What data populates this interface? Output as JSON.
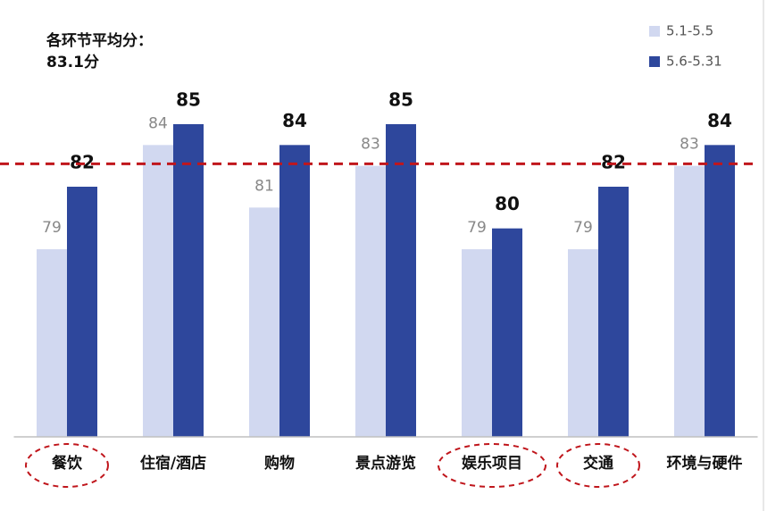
{
  "chart_data": {
    "type": "bar",
    "annotation": "各环节平均分：",
    "reference_line": {
      "value": 83.1,
      "label": "83.1分",
      "color": "#c0161c"
    },
    "categories": [
      "餐饮",
      "住宿/酒店",
      "购物",
      "景点游览",
      "娱乐项目",
      "交通",
      "环境与硬件"
    ],
    "series": [
      {
        "name": "5.1-5.5",
        "color": "#d1d8f0",
        "values": [
          79,
          84,
          81,
          83,
          79,
          79,
          83
        ]
      },
      {
        "name": "5.6-5.31",
        "color": "#2e479c",
        "values": [
          82,
          85,
          84,
          85,
          80,
          82,
          84
        ]
      }
    ],
    "highlighted_categories": [
      0,
      4,
      5
    ],
    "ylim": [
      70,
      88
    ],
    "legend": "top-right"
  }
}
